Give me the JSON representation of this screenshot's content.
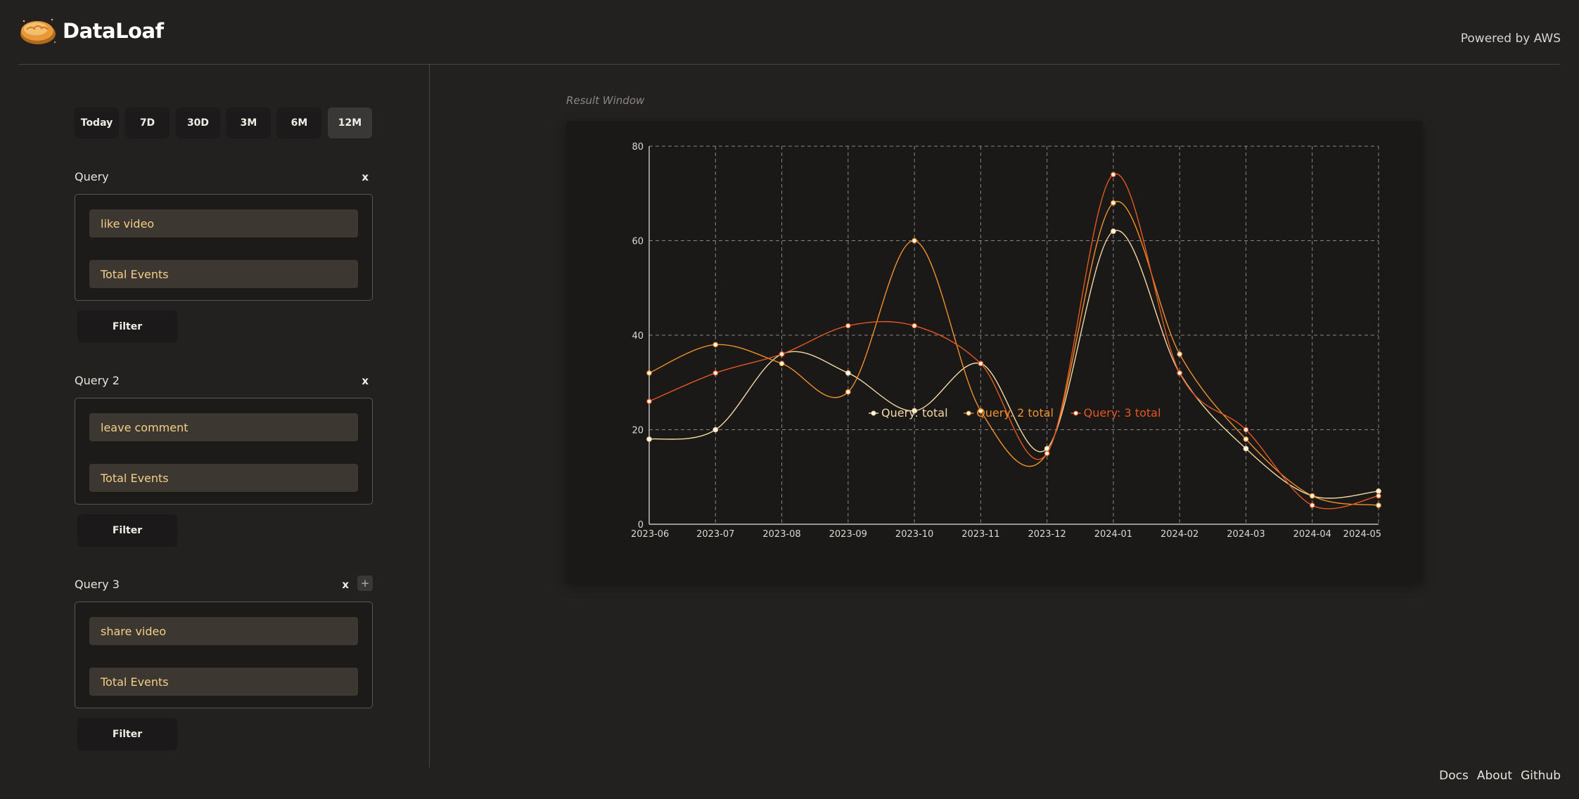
{
  "header": {
    "brand": "DataLoaf",
    "powered_by": "Powered by AWS"
  },
  "time_ranges": [
    {
      "label": "Today",
      "active": false
    },
    {
      "label": "7D",
      "active": false
    },
    {
      "label": "30D",
      "active": false
    },
    {
      "label": "3M",
      "active": false
    },
    {
      "label": "6M",
      "active": false
    },
    {
      "label": "12M",
      "active": true
    }
  ],
  "queries": [
    {
      "title": "Query",
      "event": "like video",
      "metric": "Total Events",
      "remove_label": "x",
      "filter_label": "Filter"
    },
    {
      "title": "Query 2",
      "event": "leave comment",
      "metric": "Total Events",
      "remove_label": "x",
      "filter_label": "Filter"
    },
    {
      "title": "Query 3",
      "event": "share video",
      "metric": "Total Events",
      "remove_label": "x",
      "add_label": "+",
      "filter_label": "Filter"
    }
  ],
  "result_window": {
    "label": "Result Window"
  },
  "chart_data": {
    "type": "line",
    "title": "",
    "xlabel": "",
    "ylabel": "",
    "ylim": [
      0,
      80
    ],
    "y_ticks": [
      "0",
      "20",
      "40",
      "60",
      "80"
    ],
    "grid": true,
    "legend_position": "bottom-center",
    "categories": [
      "2023-06",
      "2023-07",
      "2023-08",
      "2023-09",
      "2023-10",
      "2023-11",
      "2023-12",
      "2024-01",
      "2024-02",
      "2024-03",
      "2024-04",
      "2024-05"
    ],
    "series": [
      {
        "name": "Query: total",
        "color": "#f3d9a4",
        "values": [
          18,
          20,
          36,
          32,
          24,
          34,
          16,
          62,
          32,
          16,
          6,
          7
        ]
      },
      {
        "name": "Query: 2 total",
        "color": "#f0922b",
        "values": [
          32,
          38,
          34,
          28,
          60,
          24,
          15,
          68,
          36,
          18,
          6,
          4
        ]
      },
      {
        "name": "Query: 3 total",
        "color": "#e4581f",
        "values": [
          26,
          32,
          36,
          42,
          42,
          34,
          15,
          74,
          32,
          20,
          4,
          6
        ]
      }
    ]
  },
  "footer": {
    "links": [
      "Docs",
      "About",
      "Github"
    ]
  }
}
